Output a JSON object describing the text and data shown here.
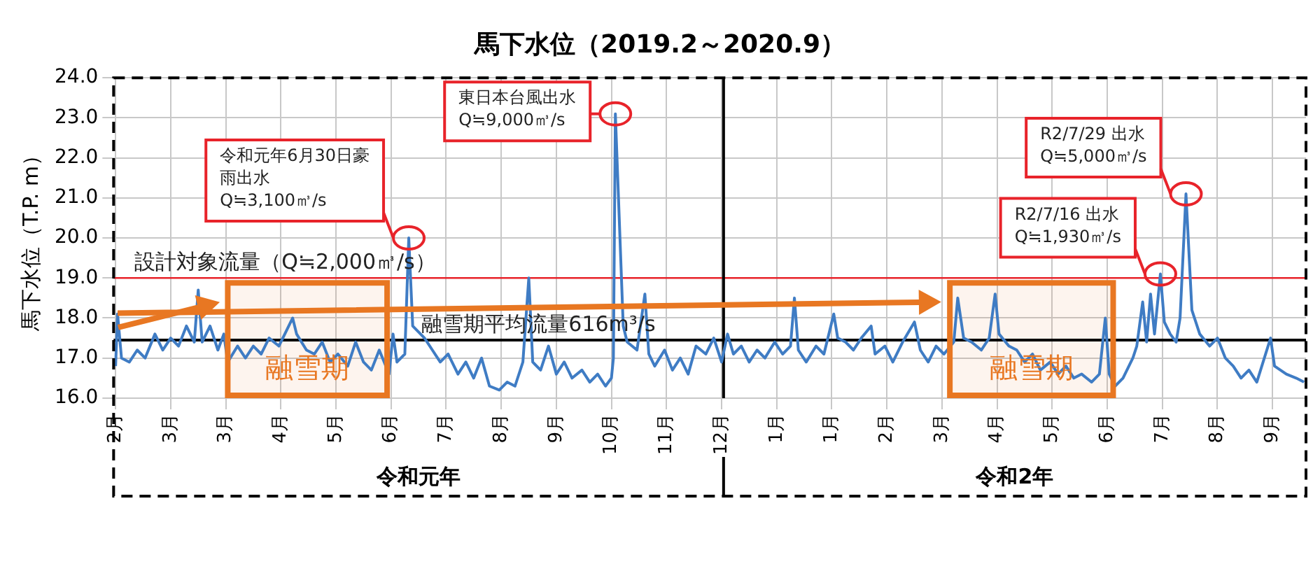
{
  "chart_data": {
    "type": "line",
    "title": "馬下水位（2019.2～2020.9）",
    "ylabel": "馬下水位（T.P. m）",
    "xlim": [
      "2019-01-31",
      "2020-09-28"
    ],
    "xticks": [
      {
        "value": "2019-02-01",
        "label": "2月"
      },
      {
        "value": "2019-03-01",
        "label": "3月"
      },
      {
        "value": "2019-03-29",
        "label": "3月"
      },
      {
        "value": "2019-04-26",
        "label": "4月"
      },
      {
        "value": "2019-05-24",
        "label": "5月"
      },
      {
        "value": "2019-06-21",
        "label": "6月"
      },
      {
        "value": "2019-07-19",
        "label": "7月"
      },
      {
        "value": "2019-08-16",
        "label": "8月"
      },
      {
        "value": "2019-09-13",
        "label": "9月"
      },
      {
        "value": "2019-10-11",
        "label": "10月"
      },
      {
        "value": "2019-11-08",
        "label": "11月"
      },
      {
        "value": "2019-12-06",
        "label": "12月"
      },
      {
        "value": "2020-01-03",
        "label": "1月"
      },
      {
        "value": "2020-01-31",
        "label": "1月"
      },
      {
        "value": "2020-02-28",
        "label": "2月"
      },
      {
        "value": "2020-03-27",
        "label": "3月"
      },
      {
        "value": "2020-04-24",
        "label": "4月"
      },
      {
        "value": "2020-05-22",
        "label": "5月"
      },
      {
        "value": "2020-06-19",
        "label": "6月"
      },
      {
        "value": "2020-07-17",
        "label": "7月"
      },
      {
        "value": "2020-08-14",
        "label": "8月"
      },
      {
        "value": "2020-09-11",
        "label": "9月"
      }
    ],
    "ylim": [
      16,
      24
    ],
    "yticks": [
      {
        "value": 16,
        "label": "16.0"
      },
      {
        "value": 17,
        "label": "17.0"
      },
      {
        "value": 18,
        "label": "18.0"
      },
      {
        "value": 19,
        "label": "19.0"
      },
      {
        "value": 20,
        "label": "20.0"
      },
      {
        "value": 21,
        "label": "21.0"
      },
      {
        "value": 22,
        "label": "22.0"
      },
      {
        "value": 23,
        "label": "23.0"
      },
      {
        "value": 24,
        "label": "24.0"
      }
    ],
    "grid": true,
    "marker": "none",
    "line_style": "solid",
    "series": [
      {
        "color": "#3f7cc4",
        "x": [
          "2019-02-01",
          "2019-02-02",
          "2019-02-04",
          "2019-02-08",
          "2019-02-12",
          "2019-02-16",
          "2019-02-21",
          "2019-02-25",
          "2019-03-01",
          "2019-03-05",
          "2019-03-09",
          "2019-03-13",
          "2019-03-15",
          "2019-03-17",
          "2019-03-21",
          "2019-03-25",
          "2019-03-28",
          "2019-03-30",
          "2019-04-04",
          "2019-04-08",
          "2019-04-12",
          "2019-04-16",
          "2019-04-20",
          "2019-04-25",
          "2019-04-29",
          "2019-05-02",
          "2019-05-04",
          "2019-05-09",
          "2019-05-13",
          "2019-05-17",
          "2019-05-21",
          "2019-05-25",
          "2019-05-30",
          "2019-06-03",
          "2019-06-07",
          "2019-06-11",
          "2019-06-15",
          "2019-06-20",
          "2019-06-22",
          "2019-06-24",
          "2019-06-28",
          "2019-06-30",
          "2019-07-02",
          "2019-07-08",
          "2019-07-12",
          "2019-07-16",
          "2019-07-20",
          "2019-07-25",
          "2019-07-29",
          "2019-08-02",
          "2019-08-06",
          "2019-08-10",
          "2019-08-15",
          "2019-08-19",
          "2019-08-23",
          "2019-08-27",
          "2019-08-30",
          "2019-09-01",
          "2019-09-05",
          "2019-09-09",
          "2019-09-13",
          "2019-09-17",
          "2019-09-21",
          "2019-09-26",
          "2019-09-30",
          "2019-10-04",
          "2019-10-08",
          "2019-10-11",
          "2019-10-12",
          "2019-10-13",
          "2019-10-17",
          "2019-10-19",
          "2019-10-24",
          "2019-10-28",
          "2019-10-30",
          "2019-11-02",
          "2019-11-07",
          "2019-11-11",
          "2019-11-15",
          "2019-11-19",
          "2019-11-23",
          "2019-11-28",
          "2019-12-02",
          "2019-12-06",
          "2019-12-09",
          "2019-12-12",
          "2019-12-16",
          "2019-12-20",
          "2019-12-24",
          "2019-12-28",
          "2020-01-02",
          "2020-01-06",
          "2020-01-10",
          "2020-01-12",
          "2020-01-14",
          "2020-01-18",
          "2020-01-23",
          "2020-01-27",
          "2020-02-01",
          "2020-02-03",
          "2020-02-07",
          "2020-02-11",
          "2020-02-15",
          "2020-02-20",
          "2020-02-22",
          "2020-02-27",
          "2020-03-02",
          "2020-03-07",
          "2020-03-13",
          "2020-03-16",
          "2020-03-20",
          "2020-03-24",
          "2020-03-28",
          "2020-04-02",
          "2020-04-04",
          "2020-04-07",
          "2020-04-11",
          "2020-04-16",
          "2020-04-20",
          "2020-04-23",
          "2020-04-25",
          "2020-04-30",
          "2020-05-04",
          "2020-05-08",
          "2020-05-12",
          "2020-05-16",
          "2020-05-21",
          "2020-05-25",
          "2020-05-29",
          "2020-06-02",
          "2020-06-06",
          "2020-06-11",
          "2020-06-15",
          "2020-06-18",
          "2020-06-20",
          "2020-06-23",
          "2020-06-27",
          "2020-07-02",
          "2020-07-04",
          "2020-07-07",
          "2020-07-09",
          "2020-07-11",
          "2020-07-13",
          "2020-07-16",
          "2020-07-18",
          "2020-07-21",
          "2020-07-24",
          "2020-07-26",
          "2020-07-29",
          "2020-08-01",
          "2020-08-05",
          "2020-08-10",
          "2020-08-14",
          "2020-08-18",
          "2020-08-22",
          "2020-08-26",
          "2020-08-30",
          "2020-09-03",
          "2020-09-10",
          "2020-09-12",
          "2020-09-18",
          "2020-09-23",
          "2020-09-27"
        ],
        "values": [
          16.8,
          18.1,
          17.0,
          16.9,
          17.2,
          17.0,
          17.6,
          17.2,
          17.5,
          17.3,
          17.8,
          17.4,
          18.7,
          17.4,
          17.8,
          17.2,
          17.6,
          16.9,
          17.3,
          17.0,
          17.3,
          17.1,
          17.5,
          17.3,
          17.7,
          18.0,
          17.6,
          17.2,
          17.1,
          17.4,
          16.9,
          17.1,
          16.8,
          17.4,
          16.9,
          16.7,
          17.2,
          16.6,
          17.6,
          16.9,
          17.1,
          20.0,
          17.8,
          17.5,
          17.2,
          16.9,
          17.1,
          16.6,
          16.9,
          16.5,
          17.0,
          16.3,
          16.2,
          16.4,
          16.3,
          16.9,
          19.0,
          16.9,
          16.7,
          17.3,
          16.6,
          16.9,
          16.5,
          16.7,
          16.4,
          16.6,
          16.3,
          16.5,
          17.0,
          23.1,
          17.8,
          17.4,
          17.2,
          18.6,
          17.1,
          16.8,
          17.2,
          16.7,
          17.0,
          16.6,
          17.3,
          17.1,
          17.5,
          16.9,
          17.6,
          17.1,
          17.3,
          16.9,
          17.2,
          17.0,
          17.4,
          17.1,
          17.3,
          18.5,
          17.2,
          16.9,
          17.3,
          17.1,
          18.1,
          17.5,
          17.4,
          17.2,
          17.5,
          17.8,
          17.1,
          17.3,
          16.9,
          17.4,
          17.9,
          17.2,
          16.9,
          17.3,
          17.1,
          17.4,
          18.5,
          17.5,
          17.4,
          17.2,
          17.5,
          18.6,
          17.6,
          17.3,
          17.2,
          16.9,
          17.1,
          16.7,
          16.9,
          16.6,
          16.8,
          16.5,
          16.6,
          16.4,
          16.6,
          18.0,
          16.6,
          16.3,
          16.5,
          17.0,
          17.3,
          18.4,
          17.4,
          18.6,
          17.6,
          19.1,
          17.9,
          17.6,
          17.4,
          18.0,
          21.1,
          18.2,
          17.6,
          17.3,
          17.5,
          17.0,
          16.8,
          16.5,
          16.7,
          16.4,
          17.5,
          16.8,
          16.6,
          16.5,
          16.4
        ]
      }
    ],
    "ref_lines": [
      {
        "axis": "y",
        "value": 19,
        "label": "設計対象流量（Q≒2,000㎥/s）",
        "color": "#e8232a"
      },
      {
        "axis": "y",
        "value": 17.45,
        "label": "融雪期平均流量616m³/s",
        "color": "#000000"
      },
      {
        "axis": "x",
        "value": "2019-12-07",
        "color": "#000000"
      }
    ],
    "bands": [
      {
        "axis": "x",
        "from": "2019-03-30",
        "to": "2019-06-19",
        "label": "融雪期",
        "color": "#e87722"
      },
      {
        "axis": "x",
        "from": "2020-03-31",
        "to": "2020-06-22",
        "label": "融雪期",
        "color": "#e87722"
      }
    ],
    "annotations": [
      {
        "text": "令和元年6月30日豪雨出水\nQ≒3,100㎥/s",
        "x": "2019-06-30",
        "y": 20.0
      },
      {
        "text": "東日本台風出水\nQ≒9,000㎥/s",
        "x": "2019-10-13",
        "y": 23.1
      },
      {
        "text": "R2/7/16 出水\nQ≒1,930㎥/s",
        "x": "2020-07-16",
        "y": 19.1
      },
      {
        "text": "R2/7/29 出水\nQ≒5,000㎥/s",
        "x": "2020-07-29",
        "y": 21.1
      },
      "令和元年",
      "令和2年"
    ]
  }
}
